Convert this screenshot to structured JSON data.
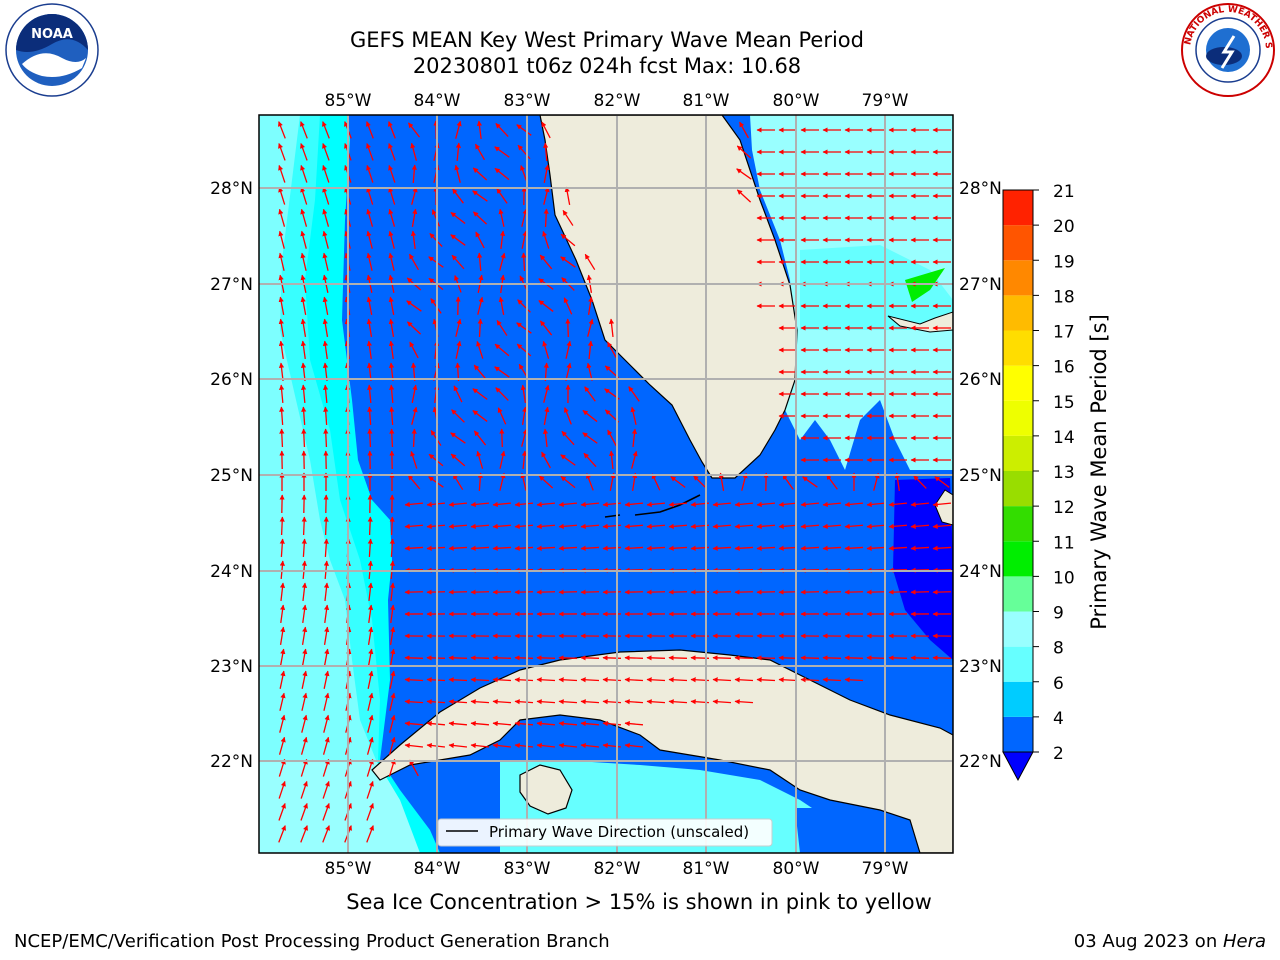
{
  "title": {
    "line1": "GEFS MEAN Key West Primary Wave Mean Period",
    "line2": "20230801 t06z 024h fcst   Max: 10.68"
  },
  "map": {
    "lon_labels": [
      "85°W",
      "84°W",
      "83°W",
      "82°W",
      "81°W",
      "80°W",
      "79°W"
    ],
    "lat_labels": [
      "28°N",
      "27°N",
      "26°N",
      "25°N",
      "24°N",
      "23°N",
      "22°N"
    ],
    "legend_label": "Primary Wave Direction (unscaled)",
    "arrow_color": "#ff0000",
    "land_color": "#eeecdc"
  },
  "colorbar": {
    "label": "Primary Wave Mean Period [s]",
    "ticks": [
      "2",
      "4",
      "6",
      "8",
      "9",
      "10",
      "11",
      "12",
      "13",
      "14",
      "15",
      "16",
      "17",
      "18",
      "19",
      "20",
      "21"
    ],
    "colors": [
      "#0066ff",
      "#00ccff",
      "#66ffff",
      "#99ffff",
      "#66ff99",
      "#00ee00",
      "#33dd00",
      "#99dd00",
      "#ccee00",
      "#eeff00",
      "#ffff00",
      "#ffdd00",
      "#ffbb00",
      "#ff8800",
      "#ff5500",
      "#ff2200"
    ],
    "extend_color": "#0000ff"
  },
  "caption": "Sea Ice Concentration > 15% is shown in pink to yellow",
  "footer": {
    "left": "NCEP/EMC/Verification Post Processing Product Generation Branch",
    "date": "03 Aug 2023 on ",
    "machine": "Hera"
  },
  "logos": {
    "noaa_text": "NOAA",
    "nws_text": "NATIONAL WEATHER SERVICE"
  }
}
